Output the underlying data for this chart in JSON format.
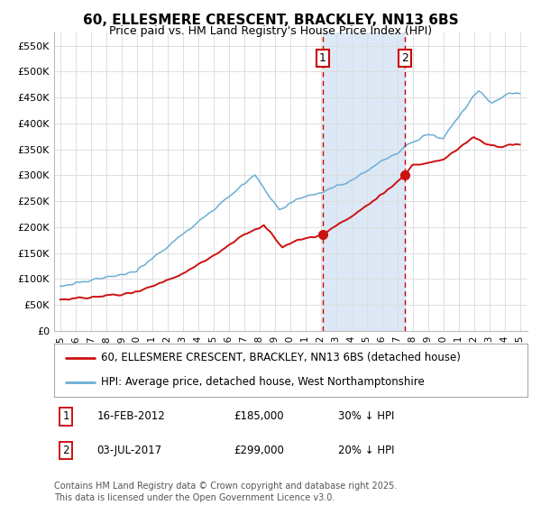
{
  "title": "60, ELLESMERE CRESCENT, BRACKLEY, NN13 6BS",
  "subtitle": "Price paid vs. HM Land Registry's House Price Index (HPI)",
  "ylim": [
    0,
    575000
  ],
  "yticks": [
    0,
    50000,
    100000,
    150000,
    200000,
    250000,
    300000,
    350000,
    400000,
    450000,
    500000,
    550000
  ],
  "ytick_labels": [
    "£0",
    "£50K",
    "£100K",
    "£150K",
    "£200K",
    "£250K",
    "£300K",
    "£350K",
    "£400K",
    "£450K",
    "£500K",
    "£550K"
  ],
  "background_color": "#ffffff",
  "plot_bg_color": "#ffffff",
  "grid_color": "#dddddd",
  "hpi_color": "#6baed6",
  "price_color": "#cc1111",
  "shade_color": "#dce8f5",
  "vline_color": "#cc0000",
  "marker_color": "#cc1111",
  "transaction1_date": 2012.12,
  "transaction1_price": 185000,
  "transaction1_label": "1",
  "transaction2_date": 2017.5,
  "transaction2_price": 299000,
  "transaction2_label": "2",
  "legend_line1": "60, ELLESMERE CRESCENT, BRACKLEY, NN13 6BS (detached house)",
  "legend_line2": "HPI: Average price, detached house, West Northamptonshire",
  "footnote": "Contains HM Land Registry data © Crown copyright and database right 2025.\nThis data is licensed under the Open Government Licence v3.0.",
  "title_fontsize": 11,
  "subtitle_fontsize": 9,
  "tick_fontsize": 8,
  "legend_fontsize": 8.5,
  "annotation_fontsize": 8.5
}
